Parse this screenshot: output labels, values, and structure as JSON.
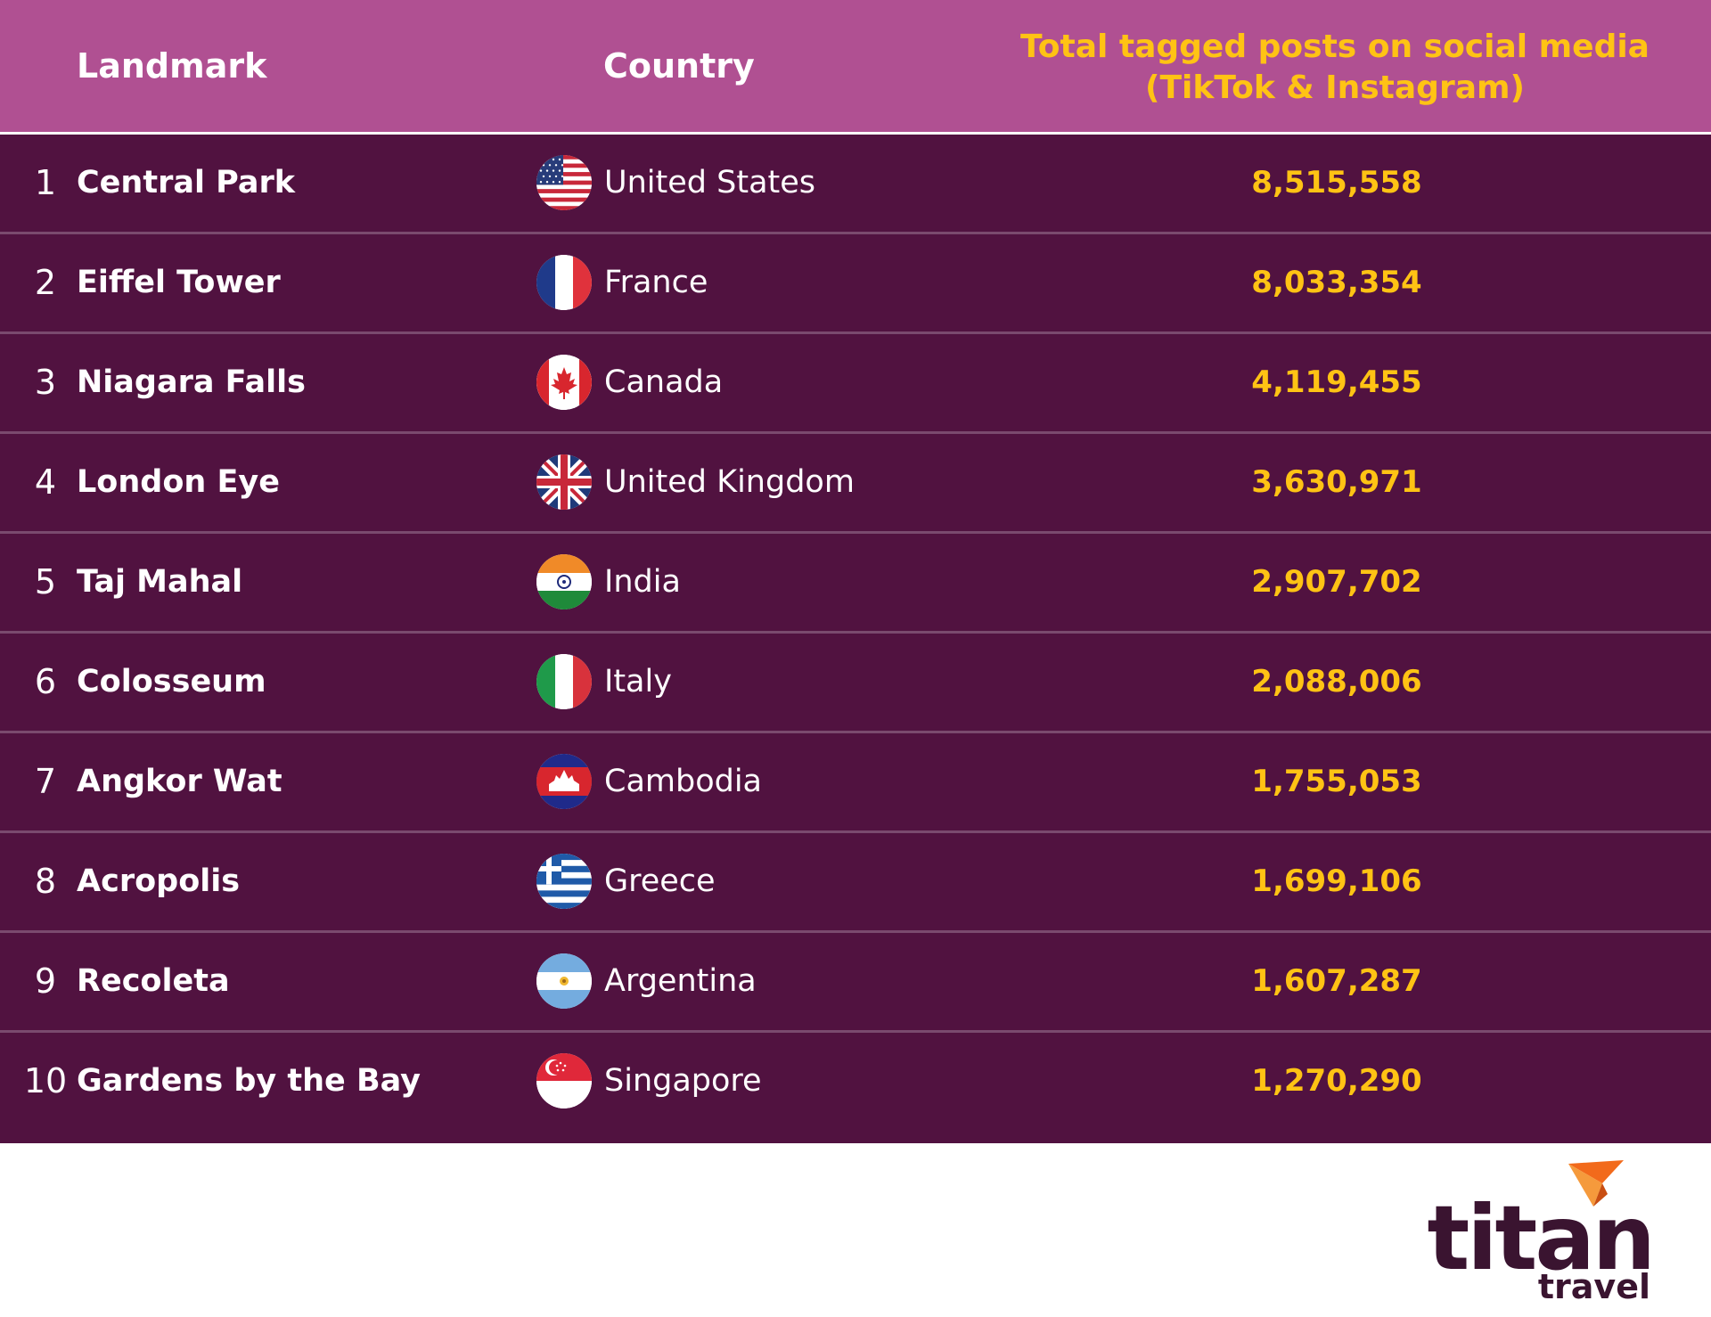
{
  "header": {
    "landmark_label": "Landmark",
    "country_label": "Country",
    "posts_label_line1": "Total tagged posts on social media",
    "posts_label_line2": "(TikTok & Instagram)"
  },
  "rows": [
    {
      "rank": "1",
      "landmark": "Central Park",
      "country": "United States",
      "flag_icon": "us-flag-icon",
      "posts": "8,515,558"
    },
    {
      "rank": "2",
      "landmark": "Eiffel Tower",
      "country": "France",
      "flag_icon": "france-flag-icon",
      "posts": "8,033,354"
    },
    {
      "rank": "3",
      "landmark": "Niagara Falls",
      "country": "Canada",
      "flag_icon": "canada-flag-icon",
      "posts": "4,119,455"
    },
    {
      "rank": "4",
      "landmark": "London Eye",
      "country": "United Kingdom",
      "flag_icon": "uk-flag-icon",
      "posts": "3,630,971"
    },
    {
      "rank": "5",
      "landmark": "Taj Mahal",
      "country": "India",
      "flag_icon": "india-flag-icon",
      "posts": "2,907,702"
    },
    {
      "rank": "6",
      "landmark": "Colosseum",
      "country": "Italy",
      "flag_icon": "italy-flag-icon",
      "posts": "2,088,006"
    },
    {
      "rank": "7",
      "landmark": "Angkor Wat",
      "country": "Cambodia",
      "flag_icon": "cambodia-flag-icon",
      "posts": "1,755,053"
    },
    {
      "rank": "8",
      "landmark": "Acropolis",
      "country": "Greece",
      "flag_icon": "greece-flag-icon",
      "posts": "1,699,106"
    },
    {
      "rank": "9",
      "landmark": "Recoleta",
      "country": "Argentina",
      "flag_icon": "argentina-flag-icon",
      "posts": "1,607,287"
    },
    {
      "rank": "10",
      "landmark": "Gardens by the Bay",
      "country": "Singapore",
      "flag_icon": "singapore-flag-icon",
      "posts": "1,270,290"
    }
  ],
  "chart_data": {
    "type": "table",
    "columns": [
      "",
      "Landmark",
      "Country",
      "Total tagged posts on social media (TikTok & Instagram)"
    ],
    "rows": [
      [
        "1",
        "Central Park",
        "United States",
        8515558
      ],
      [
        "2",
        "Eiffel Tower",
        "France",
        8033354
      ],
      [
        "3",
        "Niagara Falls",
        "Canada",
        4119455
      ],
      [
        "4",
        "London Eye",
        "United Kingdom",
        3630971
      ],
      [
        "5",
        "Taj Mahal",
        "India",
        2907702
      ],
      [
        "6",
        "Colosseum",
        "Italy",
        2088006
      ],
      [
        "7",
        "Angkor Wat",
        "Cambodia",
        1755053
      ],
      [
        "8",
        "Acropolis",
        "Greece",
        1699106
      ],
      [
        "9",
        "Recoleta",
        "Argentina",
        1607287
      ],
      [
        "10",
        "Gardens by the Bay",
        "Singapore",
        1270290
      ]
    ]
  },
  "logo": {
    "word": "titan",
    "sub": "travel"
  },
  "colors": {
    "header_bg": "#b05092",
    "body_bg": "#511240",
    "accent_yellow": "#ffc314",
    "divider": "#7a4a6e",
    "logo_text": "#3a1430",
    "logo_arrow": "#f26a1b"
  }
}
